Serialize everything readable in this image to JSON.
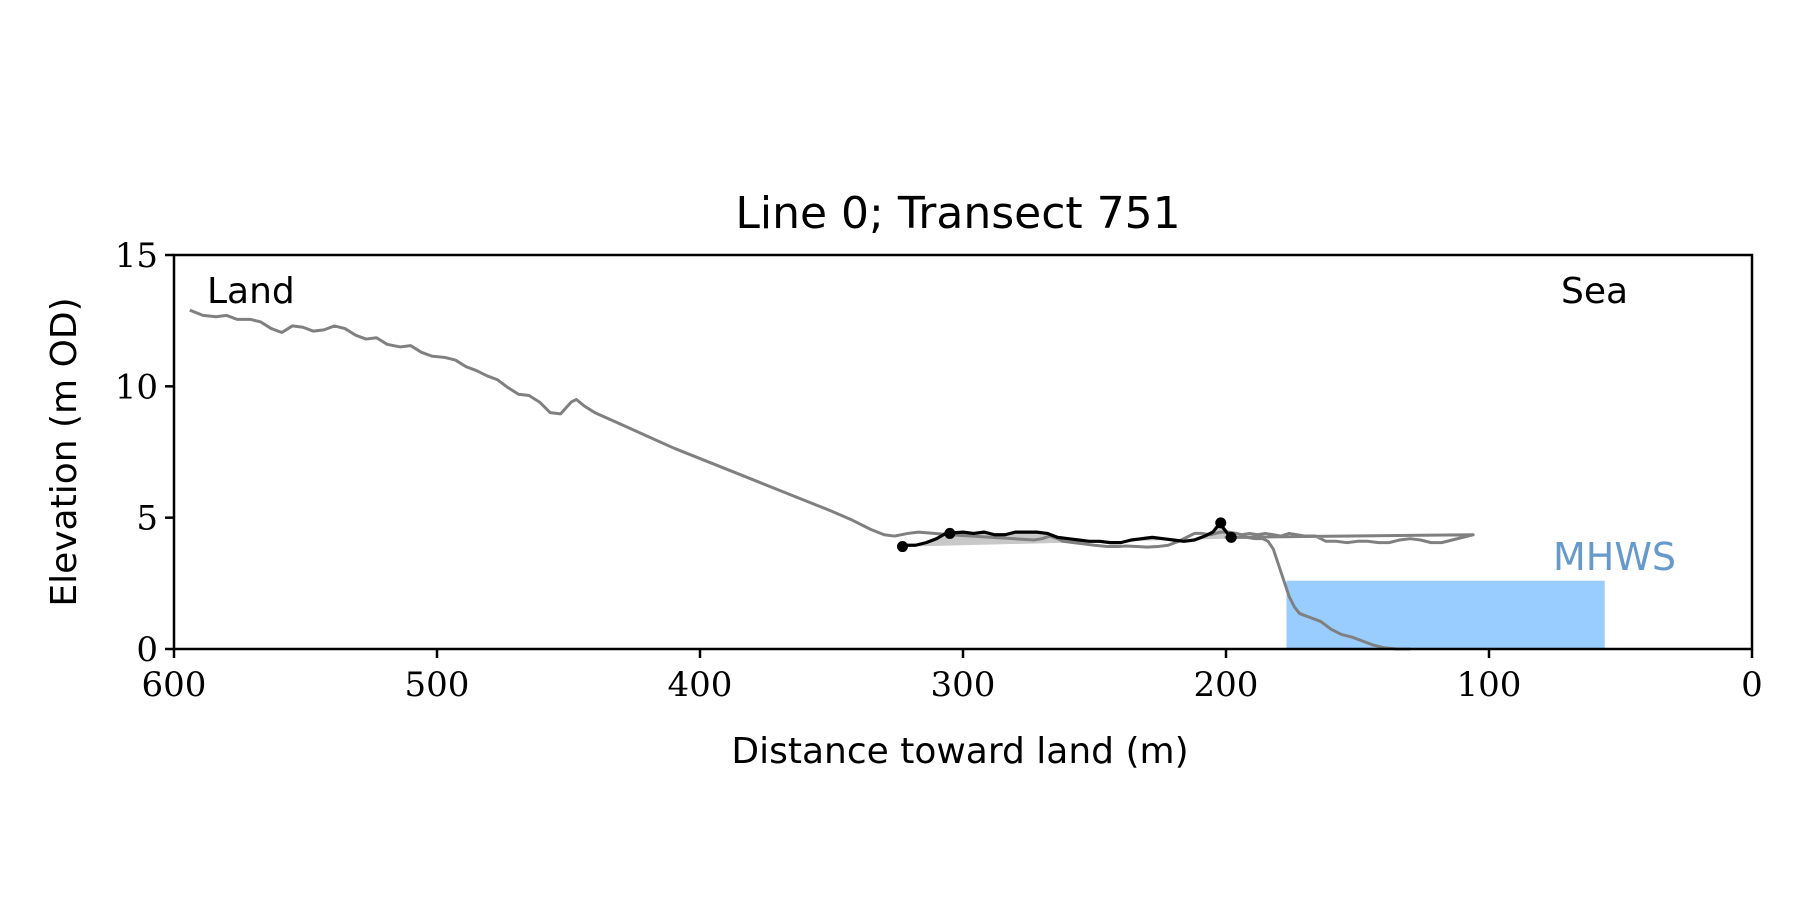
{
  "chart_data": {
    "type": "line",
    "title": "Line 0; Transect 751",
    "xlabel": "Distance toward land (m)",
    "ylabel": "Elevation (m OD)",
    "xlim": [
      600,
      0
    ],
    "ylim": [
      0,
      15
    ],
    "x_ticks": [
      "600",
      "500",
      "400",
      "300",
      "200",
      "100",
      "0"
    ],
    "y_ticks": [
      "15",
      "10",
      "5",
      "0"
    ],
    "annotations": {
      "land": "Land",
      "sea": "Sea",
      "mhws": "MHWS"
    },
    "mhws": {
      "elevation": 2.6,
      "x_from": 177,
      "x_to": 56,
      "color": "#99ccff",
      "label_color": "#6699cc"
    },
    "series": [
      {
        "role": "profile",
        "color": "#808080",
        "points": [
          [
            594,
            12.9
          ],
          [
            589,
            12.7
          ],
          [
            584,
            12.65
          ],
          [
            580,
            12.7
          ],
          [
            576,
            12.55
          ],
          [
            571,
            12.55
          ],
          [
            567,
            12.45
          ],
          [
            563,
            12.2
          ],
          [
            559,
            12.05
          ],
          [
            555,
            12.3
          ],
          [
            551,
            12.25
          ],
          [
            547,
            12.1
          ],
          [
            543,
            12.15
          ],
          [
            539,
            12.3
          ],
          [
            535,
            12.2
          ],
          [
            531,
            11.95
          ],
          [
            527,
            11.8
          ],
          [
            523,
            11.85
          ],
          [
            519,
            11.6
          ],
          [
            514,
            11.5
          ],
          [
            510,
            11.55
          ],
          [
            506,
            11.3
          ],
          [
            502,
            11.15
          ],
          [
            497,
            11.1
          ],
          [
            493,
            11.0
          ],
          [
            489,
            10.75
          ],
          [
            485,
            10.6
          ],
          [
            481,
            10.4
          ],
          [
            477,
            10.25
          ],
          [
            473,
            9.95
          ],
          [
            469,
            9.7
          ],
          [
            465,
            9.65
          ],
          [
            461,
            9.4
          ],
          [
            457,
            9.0
          ],
          [
            453,
            8.95
          ],
          [
            449,
            9.4
          ],
          [
            447,
            9.5
          ],
          [
            444,
            9.25
          ],
          [
            440,
            9.0
          ],
          [
            430,
            8.55
          ],
          [
            420,
            8.1
          ],
          [
            410,
            7.65
          ],
          [
            400,
            7.25
          ],
          [
            390,
            6.85
          ],
          [
            380,
            6.45
          ],
          [
            370,
            6.05
          ],
          [
            360,
            5.65
          ],
          [
            350,
            5.25
          ],
          [
            342,
            4.9
          ],
          [
            335,
            4.55
          ],
          [
            330,
            4.35
          ],
          [
            326,
            4.3
          ],
          [
            321,
            4.4
          ],
          [
            317,
            4.45
          ],
          [
            311,
            4.4
          ],
          [
            305,
            4.35
          ],
          [
            297,
            4.3
          ],
          [
            289,
            4.25
          ],
          [
            281,
            4.2
          ],
          [
            273,
            4.15
          ],
          [
            270,
            4.2
          ],
          [
            267,
            4.3
          ],
          [
            264,
            4.2
          ],
          [
            262,
            4.1
          ],
          [
            258,
            4.05
          ],
          [
            254,
            4.0
          ],
          [
            250,
            3.95
          ],
          [
            245,
            3.9
          ],
          [
            241,
            3.9
          ],
          [
            238,
            3.92
          ],
          [
            234,
            3.9
          ],
          [
            230,
            3.88
          ],
          [
            226,
            3.9
          ],
          [
            222,
            3.95
          ],
          [
            218,
            4.1
          ],
          [
            215,
            4.25
          ],
          [
            212,
            4.4
          ],
          [
            209,
            4.4
          ],
          [
            206,
            4.35
          ],
          [
            202,
            4.45
          ],
          [
            199,
            4.45
          ],
          [
            196,
            4.4
          ],
          [
            194,
            4.35
          ],
          [
            191,
            4.4
          ],
          [
            188,
            4.35
          ],
          [
            185,
            4.4
          ],
          [
            182,
            4.35
          ],
          [
            179,
            4.3
          ],
          [
            176,
            4.4
          ],
          [
            173,
            4.35
          ],
          [
            170,
            4.3
          ],
          [
            166,
            4.3
          ],
          [
            162,
            4.1
          ],
          [
            158,
            4.1
          ],
          [
            154,
            4.05
          ],
          [
            150,
            4.1
          ],
          [
            146,
            4.1
          ],
          [
            142,
            4.05
          ],
          [
            138,
            4.05
          ],
          [
            134,
            4.15
          ],
          [
            130,
            4.2
          ],
          [
            126,
            4.15
          ],
          [
            122,
            4.05
          ],
          [
            118,
            4.05
          ],
          [
            114,
            4.15
          ],
          [
            110,
            4.25
          ],
          [
            106,
            4.35
          ],
          [
            203,
            4.3
          ],
          [
            200,
            4.25
          ],
          [
            196,
            4.25
          ],
          [
            192,
            4.25
          ],
          [
            189,
            4.2
          ],
          [
            186,
            4.2
          ],
          [
            184,
            4.1
          ],
          [
            182,
            3.8
          ],
          [
            180,
            3.2
          ],
          [
            178,
            2.6
          ],
          [
            176,
            2.0
          ],
          [
            174,
            1.6
          ],
          [
            172,
            1.35
          ],
          [
            168,
            1.2
          ],
          [
            164,
            1.05
          ],
          [
            160,
            0.75
          ],
          [
            156,
            0.55
          ],
          [
            152,
            0.45
          ],
          [
            148,
            0.3
          ],
          [
            144,
            0.15
          ],
          [
            140,
            0.05
          ],
          [
            135,
            0.0
          ],
          [
            130,
            0.0
          ]
        ]
      },
      {
        "role": "feature",
        "color": "#000000",
        "points": [
          [
            323,
            3.95
          ],
          [
            318,
            3.95
          ],
          [
            314,
            4.05
          ],
          [
            310,
            4.2
          ],
          [
            307,
            4.38
          ],
          [
            304,
            4.42
          ],
          [
            300,
            4.45
          ],
          [
            296,
            4.4
          ],
          [
            292,
            4.45
          ],
          [
            288,
            4.35
          ],
          [
            284,
            4.35
          ],
          [
            280,
            4.45
          ],
          [
            276,
            4.45
          ],
          [
            272,
            4.45
          ],
          [
            268,
            4.4
          ],
          [
            264,
            4.25
          ],
          [
            260,
            4.2
          ],
          [
            256,
            4.15
          ],
          [
            252,
            4.1
          ],
          [
            248,
            4.1
          ],
          [
            244,
            4.05
          ],
          [
            240,
            4.05
          ],
          [
            236,
            4.15
          ],
          [
            232,
            4.2
          ],
          [
            228,
            4.25
          ],
          [
            224,
            4.2
          ],
          [
            220,
            4.15
          ],
          [
            216,
            4.1
          ],
          [
            212,
            4.15
          ],
          [
            208,
            4.3
          ],
          [
            205,
            4.45
          ],
          [
            203,
            4.7
          ],
          [
            202,
            4.8
          ],
          [
            201,
            4.6
          ],
          [
            199,
            4.35
          ],
          [
            198,
            4.25
          ]
        ],
        "markers": [
          [
            323,
            3.9
          ],
          [
            305,
            4.4
          ],
          [
            202,
            4.8
          ],
          [
            198,
            4.25
          ]
        ]
      }
    ],
    "fill": {
      "color": "#c8c8c8",
      "baseline_from": [
        320,
        3.9
      ],
      "baseline_to": [
        199,
        4.2
      ]
    }
  }
}
